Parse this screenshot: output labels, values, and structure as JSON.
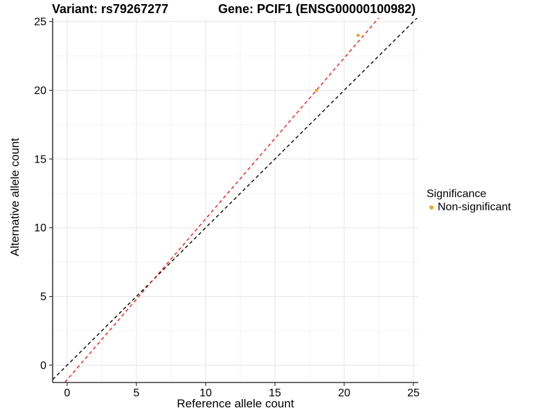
{
  "titles": {
    "variant": "Variant: rs79267277",
    "gene": "Gene: PCIF1 (ENSG00000100982)"
  },
  "axes": {
    "x_label": "Reference allele count",
    "y_label": "Alternative allele count"
  },
  "legend": {
    "title": "Significance",
    "items": [
      {
        "label": "Non-significant",
        "color": "#F8A01E"
      }
    ]
  },
  "colors": {
    "grid_major": "#E4E4E4",
    "grid_minor": "#F2F2F2",
    "axis_line": "#3B3B3B",
    "tick_mark": "#333333",
    "text": "#000000",
    "background": "#FFFFFF"
  },
  "chart_data": {
    "type": "scatter",
    "title": "Variant: rs79267277  /  Gene: PCIF1 (ENSG00000100982)",
    "xlabel": "Reference allele count",
    "ylabel": "Alternative allele count",
    "xlim": [
      -1.05,
      25.35
    ],
    "ylim": [
      -1.26,
      25.26
    ],
    "x_ticks": [
      0,
      5,
      10,
      15,
      20,
      25
    ],
    "y_ticks": [
      0,
      5,
      10,
      15,
      20,
      25
    ],
    "x_minor_ticks": [
      2.5,
      7.5,
      12.5,
      17.5,
      22.5
    ],
    "y_minor_ticks": [
      2.5,
      7.5,
      12.5,
      17.5,
      22.5
    ],
    "grid": true,
    "legend_position": "right",
    "series": [
      {
        "name": "Non-significant",
        "color": "#F8A01E"
      }
    ],
    "points": [
      {
        "x": 18,
        "y": 20,
        "series": "Non-significant"
      },
      {
        "x": 21,
        "y": 24,
        "series": "Non-significant"
      }
    ],
    "lines": [
      {
        "name": "identity",
        "slope": 1.0,
        "intercept": 0.0,
        "color": "#000000",
        "style": "dashed"
      },
      {
        "name": "fit",
        "slope": 1.17,
        "intercept": -1.05,
        "color": "#FA1414",
        "style": "dashed"
      }
    ]
  }
}
